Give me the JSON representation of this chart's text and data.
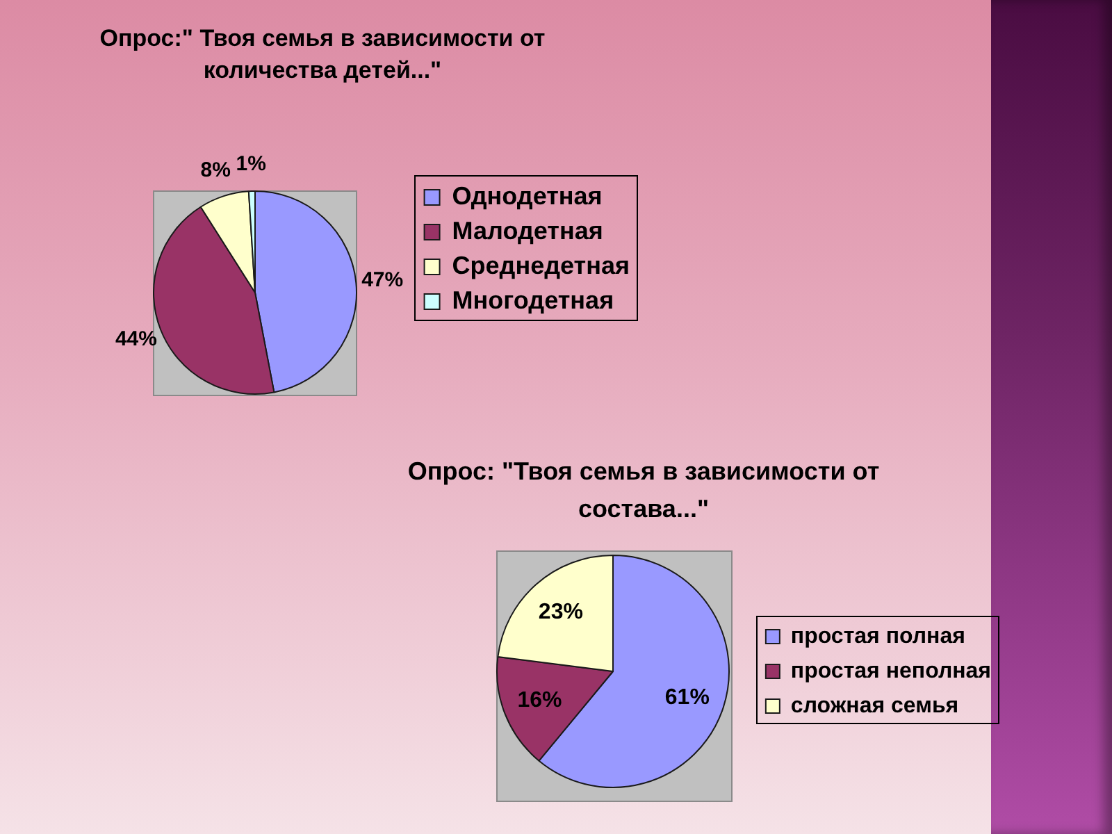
{
  "chart_data": [
    {
      "type": "pie",
      "title": "Опрос:\" Твоя семья в зависимости от количества детей...\"",
      "categories": [
        "Однодетная",
        "Малодетная",
        "Среднедетная",
        "Многодетная"
      ],
      "values": [
        47,
        44,
        8,
        1
      ],
      "colors": [
        "#9999ff",
        "#993366",
        "#ffffcc",
        "#ccffff"
      ],
      "value_labels": [
        "47%",
        "44%",
        "8%",
        "1%"
      ],
      "legend": "right"
    },
    {
      "type": "pie",
      "title": "Опрос: \"Твоя семья в зависимости от состава...\"",
      "categories": [
        "простая полная",
        "простая неполная",
        "сложная семья"
      ],
      "values": [
        61,
        16,
        23
      ],
      "colors": [
        "#9999ff",
        "#993366",
        "#ffffcc"
      ],
      "value_labels": [
        "61%",
        "16%",
        "23%"
      ],
      "legend": "right"
    }
  ]
}
